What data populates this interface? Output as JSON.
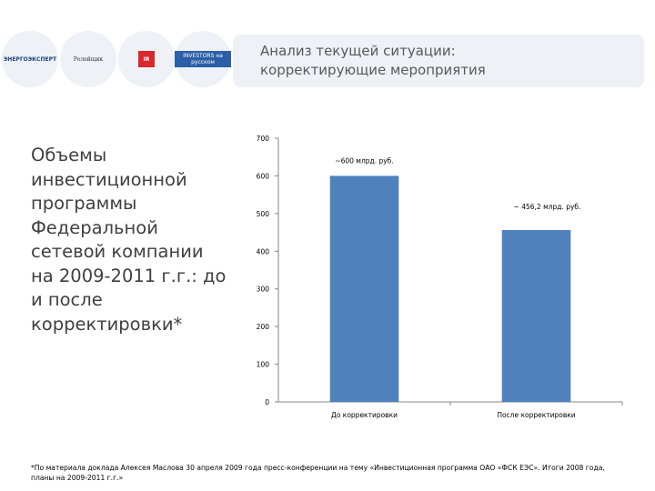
{
  "logos": {
    "logo1": "ЭНЕРГОЭКСПЕРТ",
    "logo2": "Релейщик",
    "logo3": "IR",
    "logo4": "INVESTORS на русском"
  },
  "title": {
    "line1": "Анализ текущей ситуации:",
    "line2": "корректирующие мероприятия"
  },
  "left_heading": "Объемы инвестиционной программы Федеральной сетевой компании на 2009-2011 г.г.: до и после корректировки*",
  "footnote": "*По материала доклада Алексея Маслова 30 апреля 2009 года пресс-конференции на тему «Инвестиционная программа ОАО «ФСК ЕЭС». Итоги 2008 года, планы на 2009-2011 г.г.»",
  "colors": {
    "bar": "#4f81bd",
    "axis": "#868686",
    "panel": "#eef1f6"
  },
  "chart_data": {
    "type": "bar",
    "categories": [
      "До корректировки",
      "После корректировки"
    ],
    "values": [
      600,
      456.2
    ],
    "data_labels": [
      "~600 млрд. руб.",
      "~ 456,2 млрд. руб."
    ],
    "ylim": [
      0,
      700
    ],
    "yticks": [
      0,
      100,
      200,
      300,
      400,
      500,
      600,
      700
    ],
    "title": "",
    "xlabel": "",
    "ylabel": "",
    "grid": false,
    "legend": "none"
  }
}
